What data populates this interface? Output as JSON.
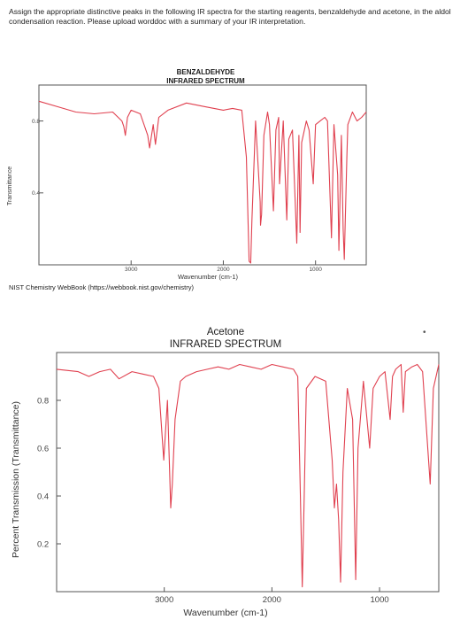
{
  "question": {
    "text": "Assign the appropriate distinctive peaks in the following IR spectra for the starting reagents, benzaldehyde and acetone, in the aldol condensation reaction. Please upload worddoc with a summary of your IR interpretation."
  },
  "source_note": "NIST Chemistry WebBook (https://webbook.nist.gov/chemistry)",
  "stray_mark": "•",
  "chart_data": [
    {
      "type": "line",
      "title_line1": "BENZALDEHYDE",
      "title_line2": "INFRARED SPECTRUM",
      "xlabel": "Wavenumber (cm-1)",
      "ylabel": "Transmittance",
      "x_ticks": [
        3000,
        2000,
        1000
      ],
      "x_tick_labels": [
        "3000",
        "2000",
        "1000"
      ],
      "y_ticks": [
        0.8,
        0.4
      ],
      "y_tick_labels": [
        "0.8",
        "0.4"
      ],
      "xlim": [
        4000,
        450
      ],
      "ylim": [
        0.0,
        1.0
      ],
      "color": "#e0404f",
      "grid": false,
      "series": [
        {
          "x": [
            4000,
            3800,
            3600,
            3400,
            3200,
            3100,
            3080,
            3063,
            3040,
            3000,
            2900,
            2820,
            2800,
            2760,
            2736,
            2700,
            2600,
            2400,
            2200,
            2000,
            1900,
            1800,
            1750,
            1720,
            1703,
            1690,
            1650,
            1600,
            1597,
            1585,
            1560,
            1520,
            1500,
            1456,
            1430,
            1400,
            1390,
            1350,
            1312,
            1290,
            1250,
            1203,
            1180,
            1168,
            1150,
            1100,
            1070,
            1025,
            1000,
            950,
            900,
            870,
            827,
            800,
            760,
            746,
            720,
            700,
            688,
            660,
            650,
            600,
            550,
            500,
            450
          ],
          "y": [
            0.91,
            0.88,
            0.85,
            0.84,
            0.85,
            0.8,
            0.77,
            0.72,
            0.82,
            0.86,
            0.84,
            0.72,
            0.65,
            0.78,
            0.67,
            0.82,
            0.86,
            0.9,
            0.88,
            0.86,
            0.87,
            0.86,
            0.6,
            0.02,
            0.01,
            0.25,
            0.8,
            0.35,
            0.22,
            0.28,
            0.72,
            0.85,
            0.78,
            0.3,
            0.75,
            0.82,
            0.45,
            0.8,
            0.25,
            0.7,
            0.75,
            0.12,
            0.72,
            0.18,
            0.68,
            0.8,
            0.75,
            0.45,
            0.78,
            0.8,
            0.82,
            0.8,
            0.15,
            0.78,
            0.5,
            0.08,
            0.72,
            0.2,
            0.03,
            0.6,
            0.78,
            0.85,
            0.8,
            0.82,
            0.85
          ]
        }
      ]
    },
    {
      "type": "line",
      "title_line1": "Acetone",
      "title_line2": "INFRARED SPECTRUM",
      "xlabel": "Wavenumber (cm-1)",
      "ylabel": "Percent Transmission (Transmittance)",
      "x_ticks": [
        3000,
        2000,
        1000
      ],
      "x_tick_labels": [
        "3000",
        "2000",
        "1000"
      ],
      "y_ticks": [
        0.8,
        0.6,
        0.4,
        0.2
      ],
      "y_tick_labels": [
        "0.8",
        "0.6",
        "0.4",
        "0.2"
      ],
      "xlim": [
        4000,
        450
      ],
      "ylim": [
        0.0,
        1.0
      ],
      "color": "#e0404f",
      "grid": false,
      "series": [
        {
          "x": [
            4000,
            3800,
            3700,
            3600,
            3500,
            3420,
            3300,
            3200,
            3100,
            3050,
            3005,
            2970,
            2940,
            2925,
            2900,
            2850,
            2800,
            2700,
            2600,
            2500,
            2400,
            2300,
            2200,
            2100,
            2000,
            1900,
            1800,
            1760,
            1740,
            1718,
            1700,
            1680,
            1600,
            1500,
            1440,
            1420,
            1400,
            1380,
            1362,
            1340,
            1300,
            1250,
            1222,
            1200,
            1150,
            1092,
            1060,
            1000,
            950,
            902,
            880,
            850,
            800,
            780,
            760,
            700,
            650,
            600,
            530,
            500,
            450
          ],
          "y": [
            0.93,
            0.92,
            0.9,
            0.92,
            0.93,
            0.89,
            0.92,
            0.91,
            0.9,
            0.85,
            0.55,
            0.8,
            0.35,
            0.45,
            0.72,
            0.88,
            0.9,
            0.92,
            0.93,
            0.94,
            0.93,
            0.95,
            0.94,
            0.93,
            0.95,
            0.94,
            0.93,
            0.9,
            0.5,
            0.02,
            0.4,
            0.85,
            0.9,
            0.88,
            0.55,
            0.35,
            0.45,
            0.3,
            0.04,
            0.5,
            0.85,
            0.72,
            0.05,
            0.6,
            0.88,
            0.6,
            0.85,
            0.9,
            0.92,
            0.72,
            0.9,
            0.93,
            0.95,
            0.75,
            0.92,
            0.94,
            0.95,
            0.92,
            0.45,
            0.85,
            0.95
          ]
        }
      ]
    }
  ]
}
